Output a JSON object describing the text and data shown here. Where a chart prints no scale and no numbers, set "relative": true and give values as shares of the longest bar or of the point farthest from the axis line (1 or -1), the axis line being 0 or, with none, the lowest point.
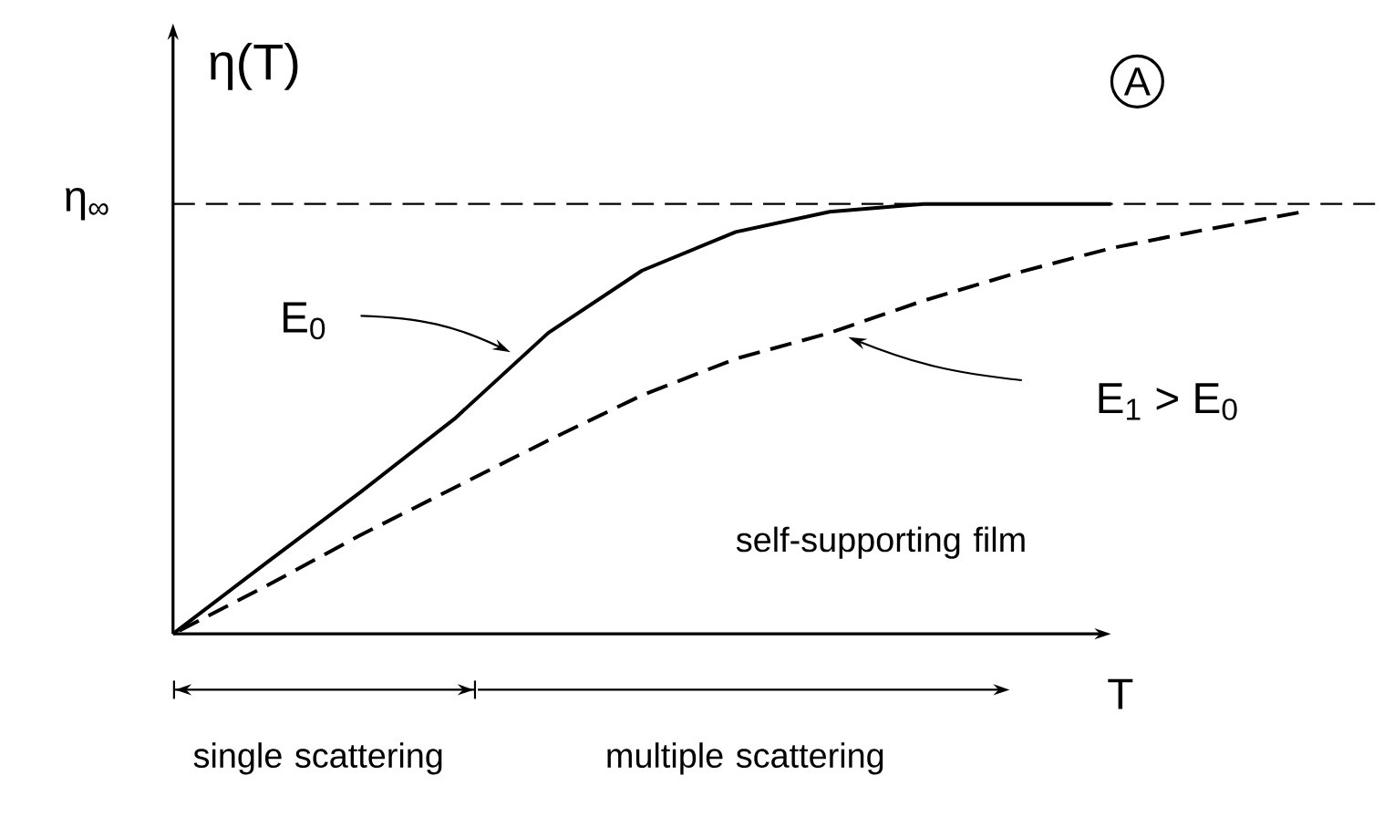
{
  "chart_data": {
    "type": "line",
    "relative": true,
    "xlabel": "T",
    "ylabel": "η(T)",
    "categories": [
      null,
      null,
      null,
      null,
      null,
      null,
      null,
      null,
      null,
      null,
      null,
      null,
      null
    ],
    "series": [
      {
        "name": "E$_{0}$",
        "color": "#000000",
        "line_style": "solid",
        "values": [
          0,
          0.166,
          0.33,
          0.5,
          0.7,
          0.845,
          0.935,
          0.982,
          1.0,
          1.0,
          1.0,
          null,
          null
        ]
      },
      {
        "name": "E$_{1}$ > E$_{0}$",
        "color": "#000000",
        "line_style": "dashed",
        "values": [
          0,
          0.112,
          0.23,
          0.34,
          0.45,
          0.555,
          0.64,
          0.7,
          0.775,
          0.84,
          0.897,
          0.94,
          0.98
        ]
      }
    ],
    "ref_lines": [
      {
        "axis": "y",
        "value": 1,
        "label": "η$_{∞}$",
        "line_style": "dashed",
        "color": "#000000"
      }
    ],
    "annotations": [
      "A",
      "self-supporting film",
      "single scattering",
      "multiple scattering"
    ]
  }
}
